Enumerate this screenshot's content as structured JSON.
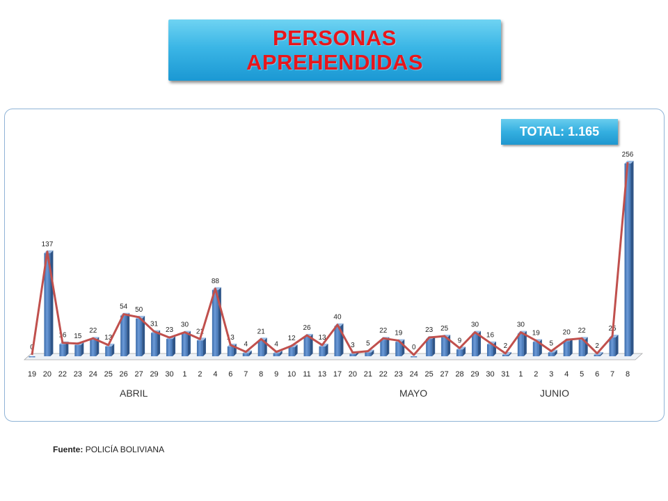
{
  "title": {
    "line1": "PERSONAS",
    "line2": "APREHENDIDAS"
  },
  "total_label": "TOTAL: 1.165",
  "months": [
    "ABRIL",
    "MAYO",
    "JUNIO"
  ],
  "source": {
    "label": "Fuente:",
    "text": "POLICÍA BOLIVIANA"
  },
  "colors": {
    "bar": "#4f81bd",
    "line": "#c0504d",
    "title_text": "#e8161b",
    "title_box": "#2aa8dd"
  },
  "chart_data": {
    "type": "bar",
    "categories": [
      "19",
      "20",
      "22",
      "23",
      "24",
      "25",
      "26",
      "27",
      "29",
      "30",
      "1",
      "2",
      "4",
      "6",
      "7",
      "8",
      "9",
      "10",
      "11",
      "13",
      "17",
      "20",
      "21",
      "22",
      "23",
      "24",
      "25",
      "27",
      "28",
      "29",
      "30",
      "31",
      "1",
      "2",
      "3",
      "4",
      "5",
      "6",
      "7",
      "8"
    ],
    "values": [
      0,
      137,
      16,
      15,
      22,
      13,
      54,
      50,
      31,
      23,
      30,
      21,
      88,
      13,
      4,
      21,
      4,
      12,
      26,
      13,
      40,
      3,
      5,
      22,
      19,
      0,
      23,
      25,
      9,
      30,
      16,
      2,
      30,
      19,
      5,
      20,
      22,
      2,
      25,
      256
    ],
    "overlay_line": true,
    "month_groups": [
      {
        "label": "ABRIL",
        "from": "19",
        "to": "30"
      },
      {
        "label": "MAYO",
        "from": "1",
        "to": "31"
      },
      {
        "label": "JUNIO",
        "from": "1",
        "to": "8"
      }
    ],
    "title": "",
    "xlabel": "",
    "ylabel": "",
    "ylim": [
      0,
      260
    ],
    "grid": false,
    "legend": "none"
  }
}
